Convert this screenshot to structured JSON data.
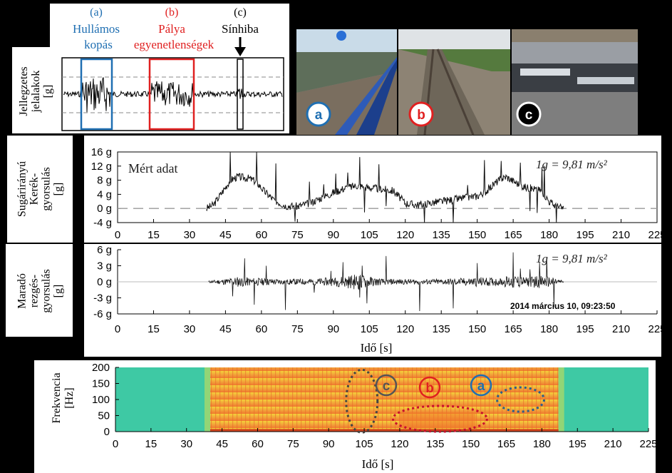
{
  "signatures_panel": {
    "labels": [
      {
        "letter": "(a)",
        "text1": "Hullámos",
        "text2": "kopás",
        "color": "#1f6fb2"
      },
      {
        "letter": "(b)",
        "text1": "Pálya",
        "text2": "egyenetlenségek",
        "color": "#e02020"
      },
      {
        "letter": "(c)",
        "text1": "Sínhiba",
        "text2": "",
        "color": "#000000"
      }
    ],
    "ylabel_lines": [
      "Jellegzetes",
      "jelalakok",
      "[g]"
    ]
  },
  "photos": [
    {
      "badge": "a",
      "badge_color": "#1f6fb2"
    },
    {
      "badge": "b",
      "badge_color": "#e02020"
    },
    {
      "badge": "c",
      "badge_color": "#000000"
    }
  ],
  "chart_data": [
    {
      "type": "line",
      "title": "Mért adat",
      "annotation": "1g = 9,81 m/s²",
      "ylabel_lines": [
        "Sugárirányú",
        "Kerék-",
        "gyorsulás",
        "[g]"
      ],
      "xlim": [
        0,
        225
      ],
      "ylim": [
        -4,
        16
      ],
      "xticks": [
        "0",
        "15",
        "30",
        "45",
        "60",
        "75",
        "90",
        "105",
        "120",
        "135",
        "150",
        "165",
        "180",
        "195",
        "210",
        "225"
      ],
      "yticks": [
        "16 g",
        "12 g",
        "8 g",
        "4 g",
        "0 g",
        "-4 g"
      ],
      "ytick_values": [
        16,
        12,
        8,
        4,
        0,
        -4
      ],
      "series": [
        {
          "x": [
            37,
            40,
            44,
            47,
            50,
            55,
            58,
            61,
            65,
            70,
            75,
            80,
            85,
            90,
            95,
            100,
            104,
            110,
            115,
            120,
            125,
            130,
            135,
            140,
            145,
            150,
            154,
            158,
            162,
            167,
            170,
            174,
            177,
            180,
            183,
            186
          ],
          "values": [
            0,
            1,
            5,
            8,
            9,
            8.5,
            7.5,
            5,
            2.5,
            0.8,
            0.6,
            1.5,
            3,
            4.5,
            5.8,
            6.5,
            6,
            5.5,
            5,
            1.5,
            1,
            1.5,
            2,
            2.5,
            3,
            3.5,
            5,
            7.5,
            9,
            7,
            6,
            5.5,
            5,
            2,
            0.5,
            0
          ]
        }
      ]
    },
    {
      "type": "line",
      "annotation": "1g = 9,81 m/s²",
      "timestamp": "2014 március 10, 09:23:50",
      "ylabel_lines": [
        "Maradó",
        "rezgés-",
        "gyorsulás",
        "[g]"
      ],
      "xlabel": "Idő [s]",
      "xlim": [
        0,
        225
      ],
      "ylim": [
        -6,
        6
      ],
      "xticks": [
        "0",
        "15",
        "30",
        "45",
        "60",
        "75",
        "90",
        "105",
        "120",
        "135",
        "150",
        "165",
        "180",
        "195",
        "210",
        "225"
      ],
      "yticks": [
        "6 g",
        "3 g",
        "0 g",
        "-3 g",
        "-6 g"
      ],
      "ytick_values": [
        6,
        3,
        0,
        -3,
        -6
      ],
      "series": [
        {
          "x": [
            38,
            45,
            50,
            55,
            60,
            70,
            80,
            90,
            100,
            110,
            120,
            130,
            140,
            150,
            160,
            165,
            170,
            175,
            180,
            186
          ],
          "values": [
            0.2,
            0.6,
            1.0,
            0.8,
            0.7,
            0.5,
            0.6,
            0.8,
            1.5,
            0.6,
            0.5,
            0.5,
            0.6,
            0.9,
            0.7,
            1.5,
            0.8,
            1.2,
            1.0,
            0.2
          ]
        }
      ]
    },
    {
      "type": "heatmap",
      "ylabel_lines": [
        "Frekvencia",
        "[Hz]"
      ],
      "xlabel": "Idő [s]",
      "xlim": [
        0,
        225
      ],
      "ylim": [
        0,
        200
      ],
      "xticks": [
        "0",
        "15",
        "30",
        "45",
        "60",
        "75",
        "90",
        "105",
        "120",
        "135",
        "150",
        "165",
        "180",
        "195",
        "210",
        "225"
      ],
      "yticks": [
        "200",
        "150",
        "100",
        "50",
        "0"
      ],
      "ytick_values": [
        200,
        150,
        100,
        50,
        0
      ],
      "active_range": [
        40,
        187
      ],
      "markers": [
        {
          "label": "c",
          "color": "#555555"
        },
        {
          "label": "b",
          "color": "#e02020"
        },
        {
          "label": "a",
          "color": "#1f6fb2"
        }
      ]
    }
  ]
}
